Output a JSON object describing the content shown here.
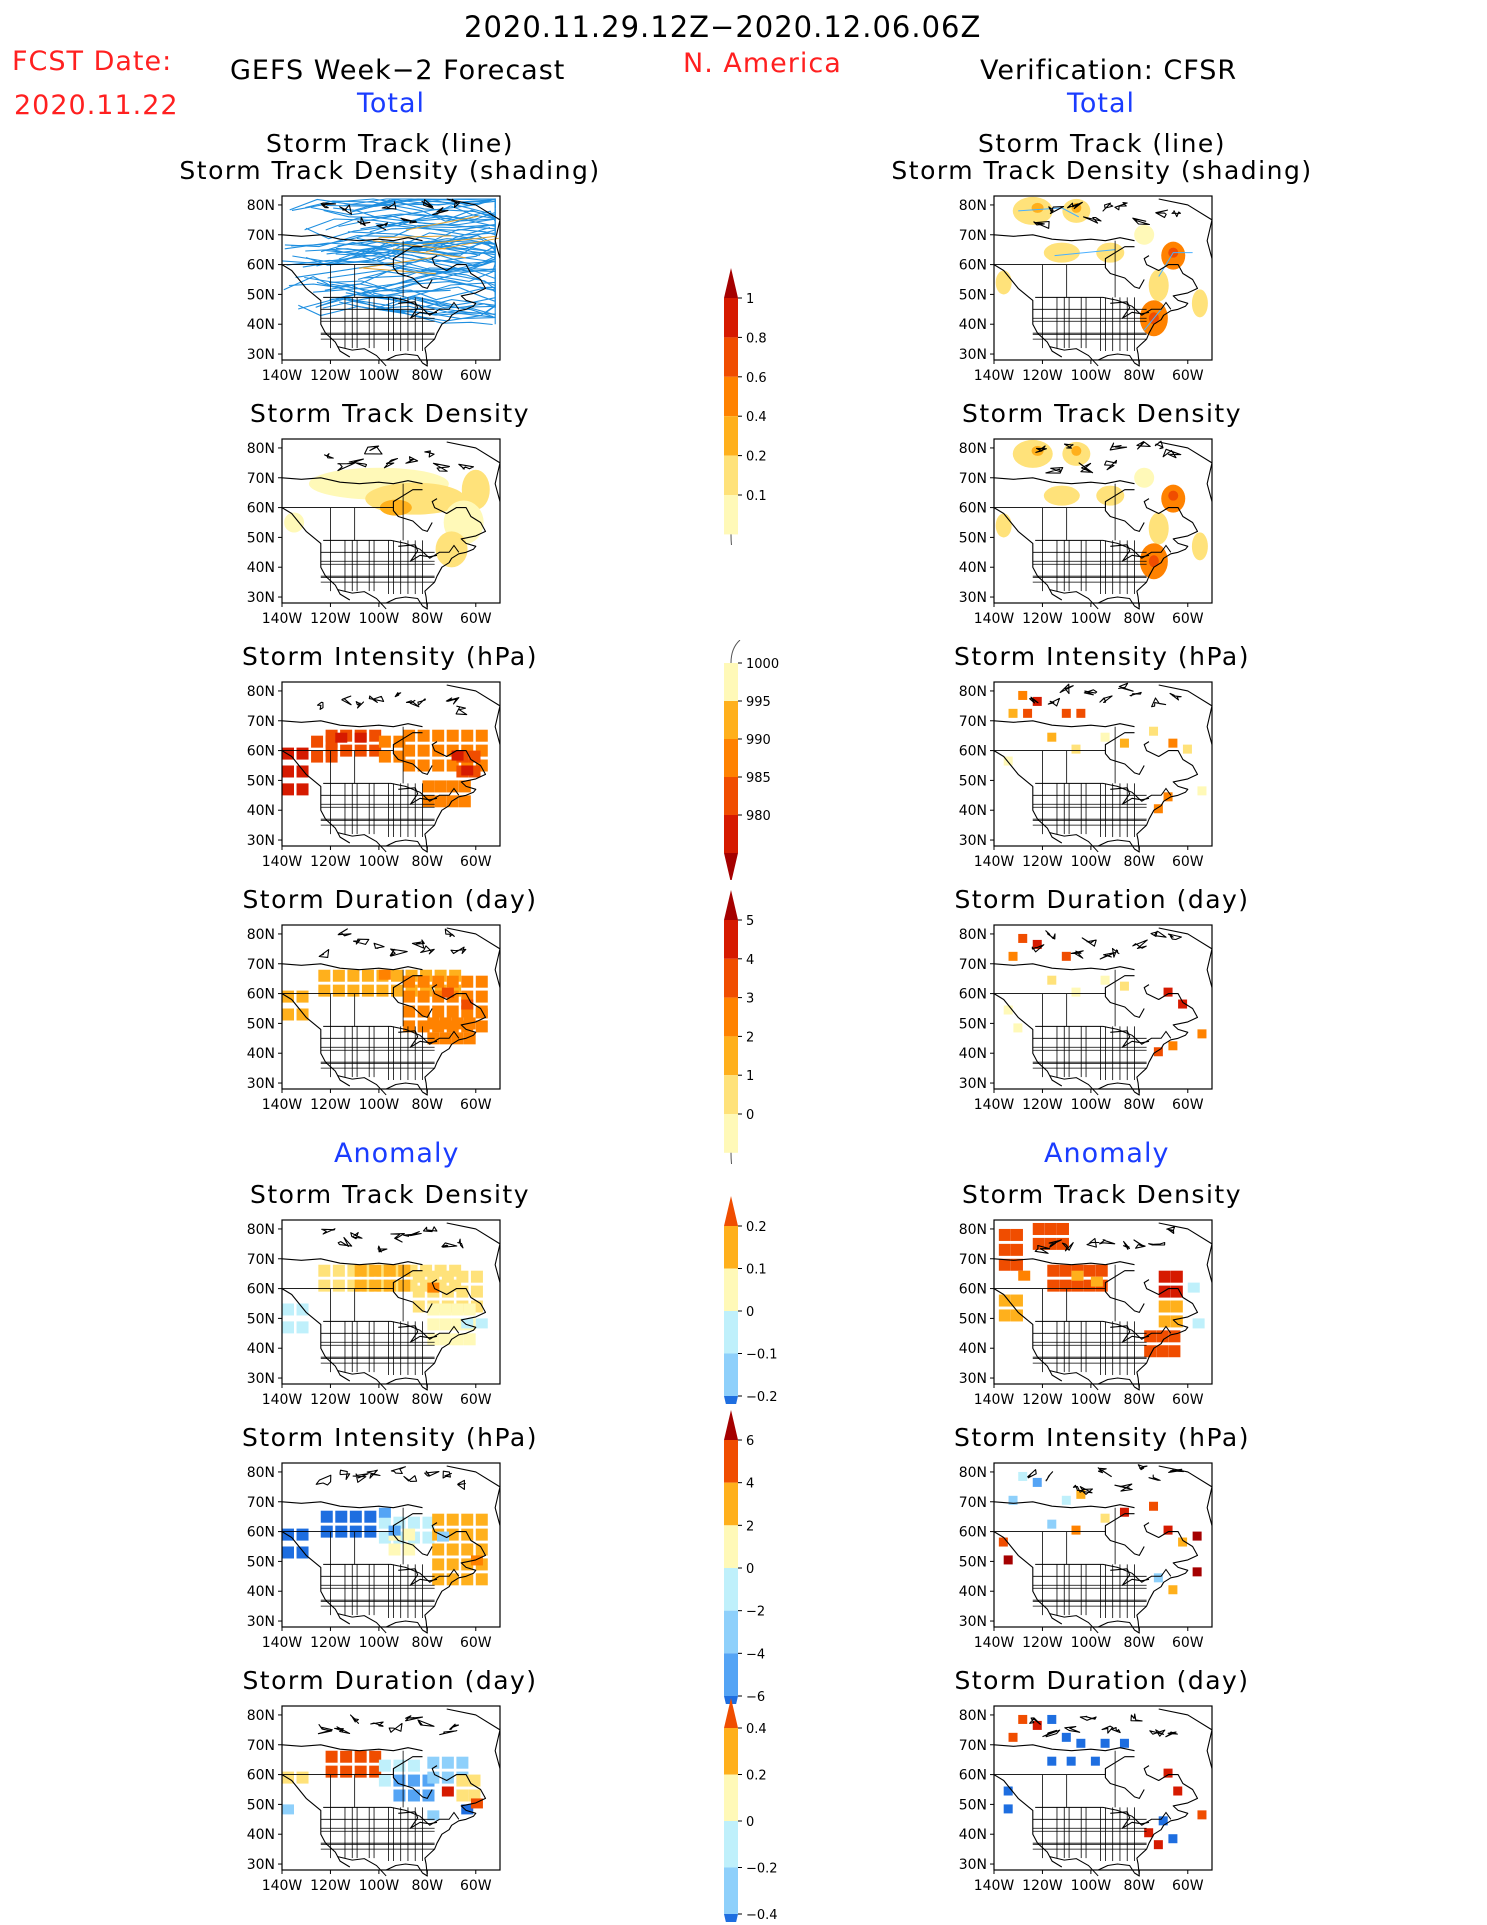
{
  "header": {
    "period": "2020.11.29.12Z−2020.12.06.06Z",
    "fcst_label": "FCST Date:",
    "fcst_date": "2020.11.22",
    "forecast_title": "GEFS Week−2 Forecast",
    "region": "N. America",
    "verification_title": "Verification: CFSR",
    "total_left": "Total",
    "total_right": "Total",
    "anomaly_left": "Anomaly",
    "anomaly_right": "Anomaly"
  },
  "panel_titles": {
    "track_line": "Storm Track (line)",
    "track_shading": "Storm Track Density (shading)",
    "density": "Storm Track Density",
    "intensity": "Storm Intensity (hPa)",
    "duration": "Storm Duration (day)"
  },
  "axes": {
    "lat_labels": [
      "80N",
      "70N",
      "60N",
      "50N",
      "40N",
      "30N"
    ],
    "lon_labels": [
      "140W",
      "120W",
      "100W",
      "80W",
      "60W"
    ]
  },
  "colorbars": {
    "track_density": [
      "1",
      "0.8",
      "0.6",
      "0.4",
      "0.2",
      "0.1"
    ],
    "intensity": [
      "1000",
      "995",
      "990",
      "985",
      "980"
    ],
    "duration": [
      "5",
      "4",
      "3",
      "2",
      "1",
      "0"
    ],
    "density_anomaly": [
      "0.2",
      "0.1",
      "0",
      "−0.1",
      "−0.2"
    ],
    "intensity_anomaly": [
      "6",
      "4",
      "2",
      "0",
      "−2",
      "−4",
      "−6"
    ],
    "duration_anomaly": [
      "0.4",
      "0.2",
      "0",
      "−0.2",
      "−0.4"
    ]
  },
  "colors": {
    "warm": [
      "#fff9b8",
      "#ffe27a",
      "#ffb01c",
      "#ff8200",
      "#f04d00",
      "#d61a00",
      "#a50000"
    ],
    "cool": [
      "#bff0fb",
      "#8ed0fb",
      "#54a4f5",
      "#1e6ee0"
    ],
    "track_lines": "#1f8fe0"
  }
}
